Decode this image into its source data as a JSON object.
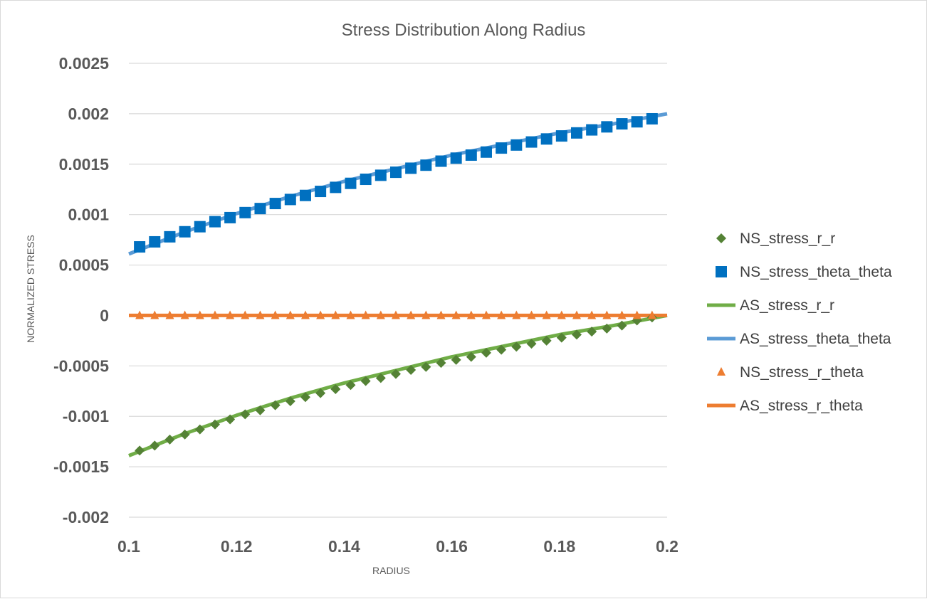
{
  "chart_data": {
    "type": "line",
    "title": "Stress Distribution Along Radius",
    "xlabel": "RADIUS",
    "ylabel": "NORMALIZED STRESS",
    "xlim": [
      0.1,
      0.2
    ],
    "ylim": [
      -0.002,
      0.0025
    ],
    "x_ticks": [
      "0.1",
      "0.12",
      "0.14",
      "0.16",
      "0.18",
      "0.2"
    ],
    "y_ticks": [
      "0.0025",
      "0.002",
      "0.0015",
      "0.001",
      "0.0005",
      "0",
      "-0.0005",
      "-0.001",
      "-0.0015",
      "-0.002"
    ],
    "grid": true,
    "legend_position": "right",
    "x": [
      0.102,
      0.1048,
      0.1076,
      0.1104,
      0.1132,
      0.116,
      0.1188,
      0.1216,
      0.1244,
      0.1272,
      0.13,
      0.1328,
      0.1356,
      0.1384,
      0.1412,
      0.144,
      0.1468,
      0.1496,
      0.1524,
      0.1552,
      0.158,
      0.1608,
      0.1636,
      0.1664,
      0.1692,
      0.172,
      0.1748,
      0.1776,
      0.1804,
      0.1832,
      0.186,
      0.1888,
      0.1916,
      0.1944,
      0.1972
    ],
    "series": [
      {
        "name": "NS_stress_r_r",
        "kind": "markers",
        "marker": "diamond",
        "color": "#548235",
        "values": [
          -0.00134,
          -0.00129,
          -0.00123,
          -0.00118,
          -0.00113,
          -0.00108,
          -0.00103,
          -0.00098,
          -0.00094,
          -0.00089,
          -0.00085,
          -0.00081,
          -0.00077,
          -0.00073,
          -0.00069,
          -0.00065,
          -0.00062,
          -0.00058,
          -0.00054,
          -0.00051,
          -0.00047,
          -0.00044,
          -0.00041,
          -0.00037,
          -0.00034,
          -0.00031,
          -0.00028,
          -0.00025,
          -0.00022,
          -0.00019,
          -0.00016,
          -0.00013,
          -0.0001,
          -5e-05,
          -2e-05
        ]
      },
      {
        "name": "NS_stress_theta_theta",
        "kind": "markers",
        "marker": "square",
        "color": "#0070c0",
        "values": [
          0.00068,
          0.00073,
          0.00078,
          0.00083,
          0.00088,
          0.00093,
          0.00097,
          0.00102,
          0.00106,
          0.00111,
          0.00115,
          0.00119,
          0.00123,
          0.00127,
          0.00131,
          0.00135,
          0.00139,
          0.00142,
          0.00146,
          0.00149,
          0.00153,
          0.00156,
          0.00159,
          0.00162,
          0.00166,
          0.00169,
          0.00172,
          0.00175,
          0.00178,
          0.00181,
          0.00184,
          0.00187,
          0.0019,
          0.00192,
          0.00195
        ]
      },
      {
        "name": "AS_stress_r_r",
        "kind": "line",
        "color": "#70ad47",
        "x": [
          0.1,
          0.11,
          0.12,
          0.13,
          0.14,
          0.15,
          0.16,
          0.17,
          0.18,
          0.19,
          0.2
        ],
        "values": [
          -0.00139,
          -0.00118,
          -0.00099,
          -0.00082,
          -0.00067,
          -0.00054,
          -0.00041,
          -0.0003,
          -0.00019,
          -0.0001,
          0.0
        ]
      },
      {
        "name": "AS_stress_theta_theta",
        "kind": "line",
        "color": "#5b9bd5",
        "x": [
          0.1,
          0.11,
          0.12,
          0.13,
          0.14,
          0.15,
          0.16,
          0.17,
          0.18,
          0.19,
          0.2
        ],
        "values": [
          0.00061,
          0.00082,
          0.00101,
          0.00118,
          0.00133,
          0.00146,
          0.00159,
          0.0017,
          0.00181,
          0.0019,
          0.002
        ]
      },
      {
        "name": "NS_stress_r_theta",
        "kind": "markers",
        "marker": "triangle",
        "color": "#ed7d31",
        "values": [
          0,
          0,
          0,
          0,
          0,
          0,
          0,
          0,
          0,
          0,
          0,
          0,
          0,
          0,
          0,
          0,
          0,
          0,
          0,
          0,
          0,
          0,
          0,
          0,
          0,
          0,
          0,
          0,
          0,
          0,
          0,
          0,
          0,
          0,
          0
        ]
      },
      {
        "name": "AS_stress_r_theta",
        "kind": "line",
        "color": "#ed7d31",
        "x": [
          0.1,
          0.2
        ],
        "values": [
          0,
          0
        ]
      }
    ]
  },
  "colors": {
    "grid": "#d9d9d9",
    "text": "#595959"
  }
}
